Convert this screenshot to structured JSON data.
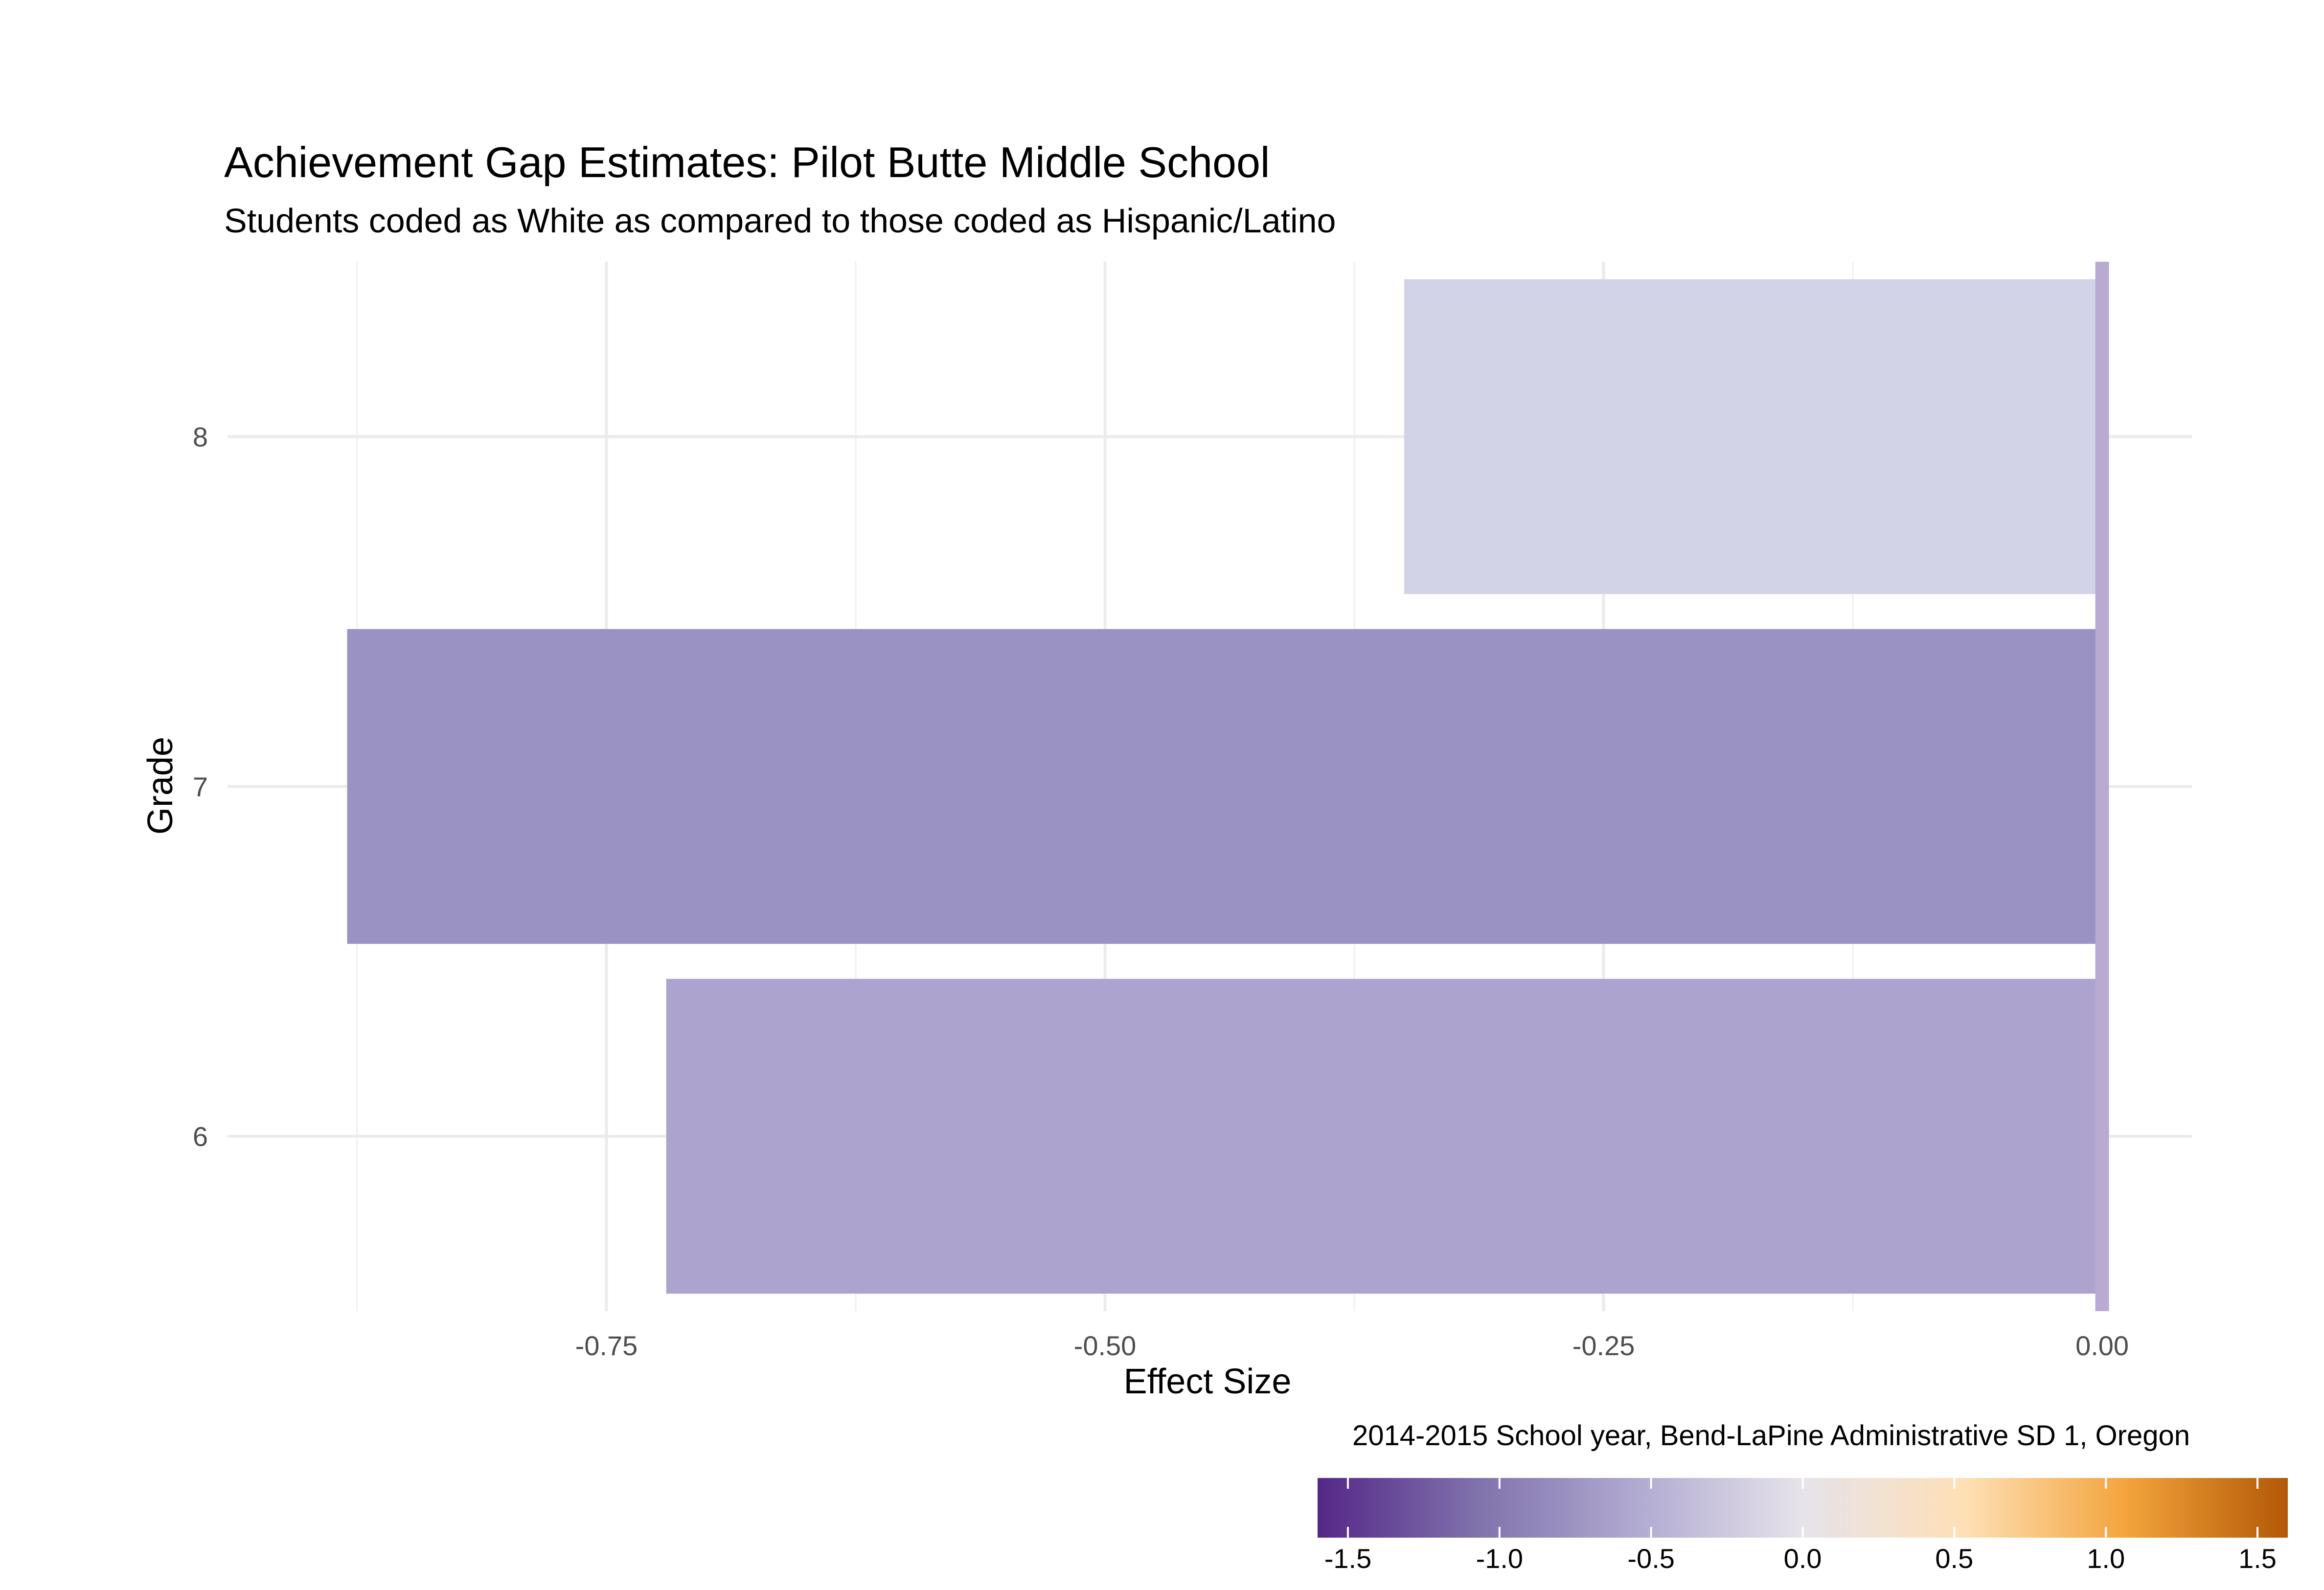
{
  "chart_data": {
    "type": "bar",
    "orientation": "horizontal",
    "title": "Achievement Gap Estimates: Pilot Butte Middle School",
    "subtitle": "Students coded as White as compared to those coded as Hispanic/Latino",
    "xlabel": "Effect Size",
    "ylabel": "Grade",
    "caption": "2014-2015 School year, Bend-LaPine Administrative SD 1, Oregon",
    "categories": [
      "6",
      "7",
      "8"
    ],
    "values": [
      -0.72,
      -0.88,
      -0.35
    ],
    "bar_colors": [
      "#aca4cf",
      "#9b92c4",
      "#d2d3e7"
    ],
    "xlim": [
      -0.94,
      0.045
    ],
    "x_ticks": [
      -0.75,
      -0.5,
      -0.25,
      0.0
    ],
    "x_tick_labels": [
      "-0.75",
      "-0.50",
      "-0.25",
      "0.00"
    ],
    "reference_line": {
      "x": 0.0,
      "color": "#b9aad2"
    },
    "grid": true,
    "legend": {
      "type": "colorbar",
      "position": "bottom-right",
      "range": [
        -1.6,
        1.6
      ],
      "ticks": [
        -1.5,
        -1.0,
        -0.5,
        0.0,
        0.5,
        1.0,
        1.5
      ],
      "tick_labels": [
        "-1.5",
        "-1.0",
        "-0.5",
        "0.0",
        "0.5",
        "1.0",
        "1.5"
      ],
      "colors": [
        "#542788",
        "#8073ac",
        "#b2abd2",
        "#e6e3ea",
        "#fee0b6",
        "#f3a43c",
        "#b35806"
      ]
    }
  }
}
